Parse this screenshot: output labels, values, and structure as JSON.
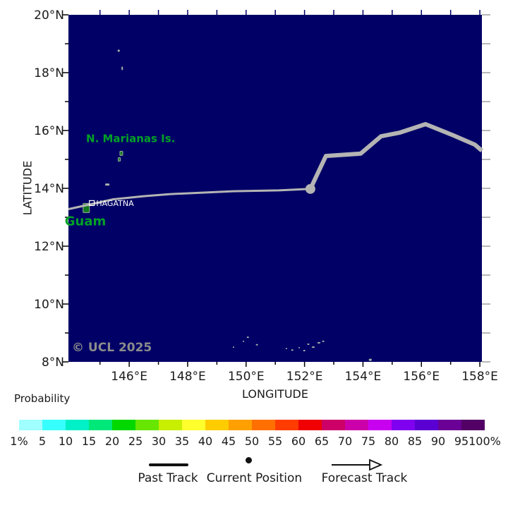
{
  "map": {
    "xlabel": "LONGITUDE",
    "ylabel": "LATITUDE",
    "copyright": "© UCL 2025",
    "bg_color": "#000066",
    "lon_range": [
      143.92,
      158.07
    ],
    "lat_range": [
      8,
      20
    ],
    "lon_ticks_minor": [
      145,
      146,
      147,
      148,
      149,
      150,
      151,
      152,
      153,
      154,
      155,
      156,
      157,
      158
    ],
    "lat_ticks_minor": [
      8,
      9,
      10,
      11,
      12,
      13,
      14,
      15,
      16,
      17,
      18,
      19,
      20
    ],
    "lon_ticks": [
      {
        "v": 146,
        "label": "146°E"
      },
      {
        "v": 148,
        "label": "148°E"
      },
      {
        "v": 150,
        "label": "150°E"
      },
      {
        "v": 152,
        "label": "152°E"
      },
      {
        "v": 154,
        "label": "154°E"
      },
      {
        "v": 156,
        "label": "156°E"
      },
      {
        "v": 158,
        "label": "158°E"
      }
    ],
    "lat_ticks": [
      {
        "v": 20,
        "label": "20°N"
      },
      {
        "v": 18,
        "label": "18°N"
      },
      {
        "v": 16,
        "label": "16°N"
      },
      {
        "v": 14,
        "label": "14°N"
      },
      {
        "v": 12,
        "label": "12°N"
      },
      {
        "v": 10,
        "label": "10°N"
      },
      {
        "v": 8,
        "label": "8°N"
      }
    ],
    "island_green": "#137a20",
    "island_gray": "#a9b2a9",
    "place_labels": [
      {
        "text": "N. Marianas Is.",
        "lon": 146.05,
        "lat": 15.73,
        "color": "#00a226",
        "size": 15,
        "bold": true,
        "anchor": "middle"
      },
      {
        "text": "Guam",
        "lon": 144.5,
        "lat": 12.87,
        "color": "#00a226",
        "size": 18,
        "bold": true,
        "anchor": "middle"
      },
      {
        "text": "HAGATNA",
        "lon": 144.87,
        "lat": 13.49,
        "color": "#ffffff",
        "size": 11,
        "bold": false,
        "anchor": "start",
        "marker_square": true,
        "marker_lon": 144.72,
        "marker_lat": 13.49
      }
    ]
  },
  "tracks": {
    "color": "#b4b4b4",
    "past": [
      [
        143.92,
        13.28
      ],
      [
        145.0,
        13.52
      ],
      [
        145.44,
        13.62
      ],
      [
        146.5,
        13.73
      ],
      [
        147.38,
        13.8
      ],
      [
        149.55,
        13.9
      ],
      [
        151.12,
        13.93
      ],
      [
        152.2,
        13.98
      ]
    ],
    "current": {
      "lon": 152.2,
      "lat": 13.98
    },
    "forecast": [
      [
        152.2,
        13.98
      ],
      [
        152.73,
        15.12
      ],
      [
        153.92,
        15.2
      ],
      [
        154.62,
        15.8
      ],
      [
        155.27,
        15.93
      ],
      [
        156.14,
        16.22
      ],
      [
        157.1,
        15.83
      ],
      [
        157.83,
        15.51
      ],
      [
        158.07,
        15.3
      ]
    ]
  },
  "islands": [
    {
      "lon": 145.64,
      "lat": 18.76,
      "w": 3,
      "h": 3,
      "green": false
    },
    {
      "lon": 145.76,
      "lat": 18.15,
      "w": 2,
      "h": 5,
      "green": false
    },
    {
      "lon": 145.73,
      "lat": 15.21,
      "w": 4,
      "h": 6,
      "green": true
    },
    {
      "lon": 145.66,
      "lat": 15.0,
      "w": 3,
      "h": 5,
      "green": true
    },
    {
      "lon": 145.25,
      "lat": 14.13,
      "w": 6,
      "h": 3,
      "green": false
    },
    {
      "lon": 144.53,
      "lat": 13.32,
      "w": 9,
      "h": 13,
      "green": true
    },
    {
      "lon": 150.06,
      "lat": 8.85,
      "w": 3,
      "h": 2,
      "green": false
    },
    {
      "lon": 149.91,
      "lat": 8.71,
      "w": 2,
      "h": 2,
      "green": false
    },
    {
      "lon": 149.57,
      "lat": 8.51,
      "w": 2,
      "h": 2,
      "green": false
    },
    {
      "lon": 150.37,
      "lat": 8.59,
      "w": 3,
      "h": 2,
      "green": false
    },
    {
      "lon": 151.38,
      "lat": 8.46,
      "w": 2,
      "h": 2,
      "green": false
    },
    {
      "lon": 151.58,
      "lat": 8.41,
      "w": 3,
      "h": 2,
      "green": false
    },
    {
      "lon": 151.82,
      "lat": 8.49,
      "w": 2,
      "h": 2,
      "green": false
    },
    {
      "lon": 152.13,
      "lat": 8.61,
      "w": 3,
      "h": 2,
      "green": false
    },
    {
      "lon": 152.3,
      "lat": 8.51,
      "w": 4,
      "h": 2,
      "green": false
    },
    {
      "lon": 151.99,
      "lat": 8.39,
      "w": 3,
      "h": 2,
      "green": false
    },
    {
      "lon": 152.49,
      "lat": 8.66,
      "w": 4,
      "h": 2,
      "green": false
    },
    {
      "lon": 152.64,
      "lat": 8.71,
      "w": 3,
      "h": 2,
      "green": false
    },
    {
      "lon": 154.25,
      "lat": 8.07,
      "w": 4,
      "h": 3,
      "green": false
    }
  ],
  "colorbar": {
    "title": "Probability",
    "colors": [
      "#a0ffff",
      "#38ffff",
      "#00f0c8",
      "#00e87a",
      "#00d800",
      "#66e600",
      "#c8ee00",
      "#ffff2e",
      "#ffcc00",
      "#ffa000",
      "#ff7000",
      "#ff3c00",
      "#f00000",
      "#cc0066",
      "#cc00aa",
      "#c800f0",
      "#8000f0",
      "#5a00d2",
      "#6a0096",
      "#520066"
    ],
    "tick_labels": [
      "1%",
      "5",
      "10",
      "15",
      "20",
      "25",
      "30",
      "35",
      "40",
      "45",
      "50",
      "55",
      "60",
      "65",
      "70",
      "75",
      "80",
      "85",
      "90",
      "95",
      "100%"
    ]
  },
  "legend": {
    "items": [
      {
        "label": "Past Track",
        "symbol": "line"
      },
      {
        "label": "Current Position",
        "symbol": "dot"
      },
      {
        "label": "Forecast Track",
        "symbol": "arrow"
      }
    ]
  }
}
